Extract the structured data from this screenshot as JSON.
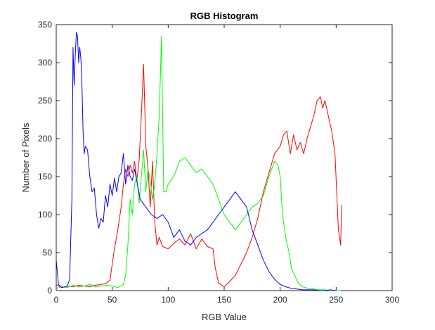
{
  "chart_data": {
    "type": "line",
    "title": "RGB Histogram",
    "xlabel": "RGB Value",
    "ylabel": "Number of Pixels",
    "xlim": [
      0,
      300
    ],
    "ylim": [
      0,
      350
    ],
    "xticks": [
      0,
      50,
      100,
      150,
      200,
      250,
      300
    ],
    "yticks": [
      0,
      50,
      100,
      150,
      200,
      250,
      300,
      350
    ],
    "grid": false,
    "legend": "none",
    "series": [
      {
        "color": "#ff0000",
        "x": [
          0,
          5,
          10,
          15,
          20,
          25,
          30,
          35,
          40,
          45,
          48,
          50,
          52,
          55,
          58,
          60,
          62,
          64,
          66,
          68,
          70,
          72,
          74,
          76,
          78,
          80,
          82,
          84,
          86,
          88,
          90,
          92,
          95,
          100,
          105,
          110,
          115,
          120,
          125,
          130,
          135,
          140,
          142,
          145,
          150,
          155,
          160,
          165,
          170,
          175,
          180,
          185,
          190,
          195,
          200,
          203,
          206,
          209,
          212,
          215,
          218,
          221,
          224,
          227,
          230,
          233,
          236,
          238,
          240,
          243,
          246,
          249,
          252,
          254,
          255
        ],
        "y": [
          8,
          4,
          6,
          5,
          7,
          6,
          5,
          7,
          8,
          10,
          14,
          35,
          55,
          80,
          110,
          140,
          160,
          150,
          165,
          155,
          170,
          145,
          170,
          230,
          298,
          190,
          160,
          110,
          170,
          90,
          60,
          70,
          58,
          55,
          62,
          68,
          60,
          75,
          55,
          68,
          58,
          55,
          30,
          10,
          5,
          12,
          20,
          35,
          50,
          70,
          95,
          130,
          155,
          180,
          190,
          205,
          210,
          180,
          205,
          185,
          195,
          180,
          200,
          215,
          230,
          250,
          255,
          240,
          250,
          230,
          210,
          180,
          80,
          60,
          113
        ],
        "values": [
          8,
          4,
          6,
          5,
          7,
          6,
          5,
          7,
          8,
          10,
          14,
          35,
          55,
          80,
          110,
          140,
          160,
          150,
          165,
          155,
          170,
          145,
          170,
          230,
          298,
          190,
          160,
          110,
          170,
          90,
          60,
          70,
          58,
          55,
          62,
          68,
          60,
          75,
          55,
          68,
          58,
          55,
          30,
          10,
          5,
          12,
          20,
          35,
          50,
          70,
          95,
          130,
          155,
          180,
          190,
          205,
          210,
          180,
          205,
          185,
          195,
          180,
          200,
          215,
          230,
          250,
          255,
          240,
          250,
          230,
          210,
          180,
          80,
          60,
          113
        ]
      },
      {
        "color": "#00ff00",
        "x": [
          0,
          5,
          10,
          15,
          20,
          25,
          30,
          35,
          40,
          45,
          50,
          55,
          60,
          62,
          64,
          66,
          68,
          70,
          72,
          74,
          76,
          78,
          80,
          82,
          84,
          86,
          88,
          90,
          92,
          94,
          96,
          98,
          100,
          105,
          110,
          115,
          120,
          125,
          130,
          135,
          140,
          145,
          150,
          155,
          160,
          165,
          170,
          175,
          180,
          185,
          190,
          195,
          198,
          200,
          202,
          205,
          208,
          210,
          213,
          216,
          220,
          225,
          230,
          235,
          240,
          245,
          250,
          252,
          254
        ],
        "y": [
          3,
          5,
          4,
          7,
          5,
          6,
          8,
          5,
          6,
          7,
          6,
          4,
          8,
          20,
          60,
          120,
          100,
          140,
          150,
          115,
          150,
          185,
          130,
          160,
          145,
          120,
          140,
          180,
          230,
          335,
          130,
          130,
          140,
          150,
          170,
          175,
          165,
          155,
          160,
          150,
          140,
          120,
          100,
          90,
          80,
          90,
          100,
          110,
          115,
          125,
          150,
          170,
          165,
          150,
          100,
          70,
          50,
          30,
          20,
          10,
          5,
          3,
          2,
          1,
          1,
          0,
          0,
          0,
          0
        ],
        "values": [
          3,
          5,
          4,
          7,
          5,
          6,
          8,
          5,
          6,
          7,
          6,
          4,
          8,
          20,
          60,
          120,
          100,
          140,
          150,
          115,
          150,
          185,
          130,
          160,
          145,
          120,
          140,
          180,
          230,
          335,
          130,
          130,
          140,
          150,
          170,
          175,
          165,
          155,
          160,
          150,
          140,
          120,
          100,
          90,
          80,
          90,
          100,
          110,
          115,
          125,
          150,
          170,
          165,
          150,
          100,
          70,
          50,
          30,
          20,
          10,
          5,
          3,
          2,
          1,
          1,
          0,
          0,
          0,
          0
        ]
      },
      {
        "color": "#0000ff",
        "x": [
          0,
          2,
          5,
          8,
          10,
          12,
          14,
          15,
          16,
          17,
          18,
          19,
          20,
          21,
          22,
          23,
          24,
          25,
          26,
          28,
          30,
          32,
          34,
          36,
          38,
          40,
          42,
          44,
          46,
          48,
          50,
          52,
          54,
          56,
          58,
          60,
          62,
          64,
          66,
          68,
          70,
          75,
          80,
          85,
          90,
          95,
          100,
          105,
          110,
          115,
          120,
          125,
          130,
          135,
          140,
          145,
          150,
          155,
          160,
          165,
          170,
          175,
          180,
          185,
          190,
          195,
          200,
          205,
          210,
          215,
          220,
          225,
          230,
          235,
          240,
          245,
          250
        ],
        "y": [
          40,
          8,
          4,
          5,
          6,
          15,
          120,
          320,
          270,
          310,
          340,
          335,
          300,
          320,
          305,
          270,
          210,
          180,
          190,
          185,
          150,
          130,
          135,
          100,
          82,
          95,
          90,
          125,
          110,
          140,
          125,
          148,
          130,
          150,
          155,
          180,
          140,
          165,
          150,
          145,
          160,
          120,
          110,
          100,
          95,
          100,
          90,
          70,
          80,
          65,
          60,
          70,
          75,
          80,
          90,
          100,
          110,
          120,
          130,
          120,
          110,
          80,
          60,
          40,
          25,
          15,
          8,
          5,
          3,
          2,
          1,
          1,
          1,
          0,
          0,
          1,
          0
        ],
        "values": [
          40,
          8,
          4,
          5,
          6,
          15,
          120,
          320,
          270,
          310,
          340,
          335,
          300,
          320,
          305,
          270,
          210,
          180,
          190,
          185,
          150,
          130,
          135,
          100,
          82,
          95,
          90,
          125,
          110,
          140,
          125,
          148,
          130,
          150,
          155,
          180,
          140,
          165,
          150,
          145,
          160,
          120,
          110,
          100,
          95,
          100,
          90,
          70,
          80,
          65,
          60,
          70,
          75,
          80,
          90,
          100,
          110,
          120,
          130,
          120,
          110,
          80,
          60,
          40,
          25,
          15,
          8,
          5,
          3,
          2,
          1,
          1,
          1,
          0,
          0,
          1,
          0
        ]
      }
    ]
  }
}
